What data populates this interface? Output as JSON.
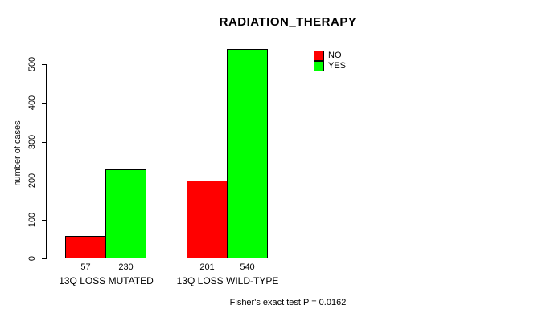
{
  "chart_data": {
    "type": "bar",
    "title": "RADIATION_THERAPY",
    "ylabel": "number of cases",
    "xlabel": "",
    "ylim": [
      0,
      550
    ],
    "yticks": [
      0,
      100,
      200,
      300,
      400,
      500
    ],
    "categories": [
      "13Q LOSS MUTATED",
      "13Q LOSS WILD-TYPE"
    ],
    "series": [
      {
        "name": "NO",
        "color": "#ff0000",
        "values": [
          57,
          201
        ]
      },
      {
        "name": "YES",
        "color": "#00ff00",
        "values": [
          230,
          540
        ]
      }
    ],
    "annotation": "Fisher's exact test P = 0.0162",
    "legend_position": "top-right",
    "grid": false,
    "bar_border_color": "#000000",
    "axis_color": "#000000",
    "background_color": "#ffffff"
  }
}
